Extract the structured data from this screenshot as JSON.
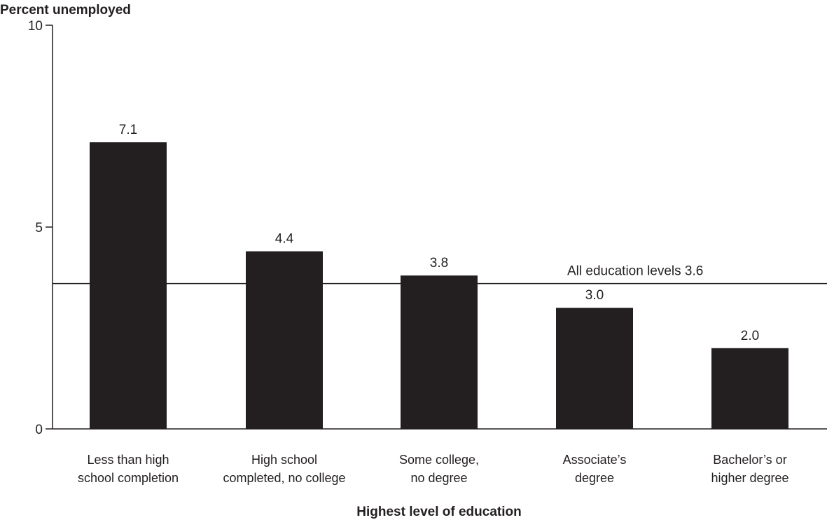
{
  "chart_data": {
    "type": "bar",
    "title": "",
    "ylabel": "Percent unemployed",
    "xlabel": "Highest level of education",
    "ylim": [
      0,
      10
    ],
    "yticks": [
      0,
      5,
      10
    ],
    "categories": [
      [
        "Less than high",
        "school completion"
      ],
      [
        "High school",
        "completed, no college"
      ],
      [
        "Some college,",
        "no degree"
      ],
      [
        "Associate’s",
        "degree"
      ],
      [
        "Bachelor’s or",
        "higher degree"
      ]
    ],
    "values": [
      7.1,
      4.4,
      3.8,
      3.0,
      2.0
    ],
    "data_labels": [
      "7.1",
      "4.4",
      "3.8",
      "3.0",
      "2.0"
    ],
    "reference_line": {
      "value": 3.6,
      "label": "All education levels 3.6"
    },
    "bar_color": "#231f20",
    "grid": false,
    "legend": "none"
  }
}
